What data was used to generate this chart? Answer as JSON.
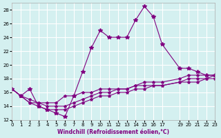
{
  "xlabel": "Windchill (Refroidissement éolien,°C)",
  "background_color": "#d4f0f0",
  "line_color": "#800080",
  "x_data": [
    0,
    1,
    2,
    3,
    4,
    5,
    6,
    7,
    8,
    9,
    10,
    11,
    12,
    13,
    14,
    15,
    16,
    17,
    19,
    20,
    21,
    22,
    23
  ],
  "y_main": [
    16.5,
    15.5,
    16.5,
    14.0,
    13.5,
    13.0,
    12.5,
    15.5,
    19.0,
    22.5,
    25.0,
    24.0,
    24.0,
    24.0,
    26.5,
    28.5,
    27.0,
    23.0,
    19.5,
    19.5,
    19.0,
    18.5,
    18.5
  ],
  "y_line2": [
    16.5,
    15.5,
    15.0,
    14.5,
    14.5,
    14.5,
    15.5,
    15.5,
    16.0,
    16.0,
    16.5,
    16.5,
    16.5,
    16.5,
    17.0,
    17.5,
    17.5,
    17.5,
    18.0,
    18.5,
    18.5,
    18.5,
    18.5
  ],
  "y_line3": [
    16.5,
    15.5,
    14.5,
    14.5,
    14.0,
    14.0,
    14.0,
    14.5,
    15.0,
    15.5,
    16.0,
    16.0,
    16.5,
    16.5,
    17.0,
    17.0,
    17.0,
    17.0,
    17.5,
    18.0,
    18.0,
    18.0,
    18.5
  ],
  "y_line4": [
    16.5,
    15.5,
    14.5,
    14.0,
    13.5,
    13.5,
    13.5,
    14.0,
    14.5,
    15.0,
    15.5,
    15.5,
    16.0,
    16.0,
    16.5,
    16.5,
    17.0,
    17.0,
    17.5,
    17.5,
    17.5,
    18.0,
    18.0
  ],
  "ylim": [
    12,
    29
  ],
  "xlim": [
    0,
    23
  ],
  "yticks": [
    12,
    14,
    16,
    18,
    20,
    22,
    24,
    26,
    28
  ],
  "xticks": [
    0,
    1,
    2,
    3,
    4,
    5,
    6,
    7,
    8,
    9,
    10,
    11,
    12,
    13,
    14,
    15,
    16,
    17,
    19,
    20,
    21,
    22,
    23
  ]
}
